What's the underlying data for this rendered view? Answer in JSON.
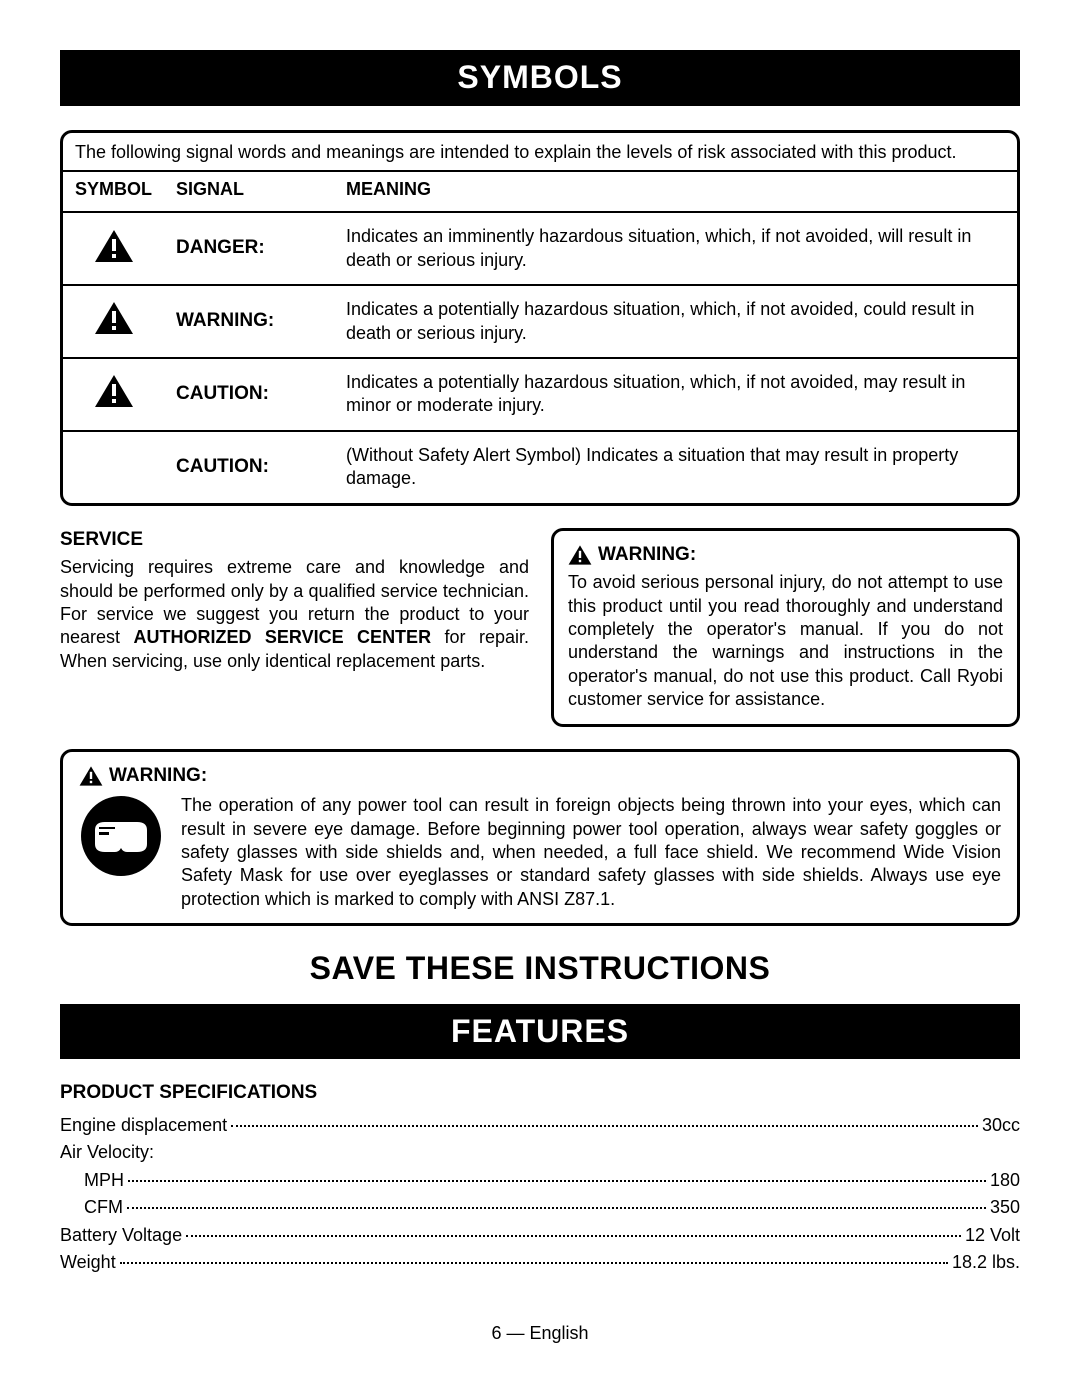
{
  "banners": {
    "symbols": "SYMBOLS",
    "features": "FEATURES"
  },
  "signal_intro": "The following signal words and meanings are intended to explain the levels of risk associated with this product.",
  "table": {
    "headers": {
      "symbol": "SYMBOL",
      "signal": "SIGNAL",
      "meaning": "MEANING"
    },
    "rows": [
      {
        "has_icon": true,
        "signal": "DANGER:",
        "meaning": "Indicates an imminently hazardous situation, which, if not avoided, will result in death or serious injury."
      },
      {
        "has_icon": true,
        "signal": "WARNING:",
        "meaning": "Indicates a potentially hazardous situation, which, if not avoided, could result in death or serious injury."
      },
      {
        "has_icon": true,
        "signal": "CAUTION:",
        "meaning": "Indicates a potentially hazardous situation, which, if not avoided, may result in minor or moderate injury."
      },
      {
        "has_icon": false,
        "signal": "CAUTION:",
        "meaning": "(Without Safety Alert Symbol) Indicates a situation that may result in property damage."
      }
    ]
  },
  "service": {
    "heading": "SERVICE",
    "text_before": "Servicing requires extreme care and knowledge and should be performed only by a qualified service technician. For service we suggest you return the product to your nearest ",
    "bold": "AUTHORIZED SERVICE CENTER",
    "text_after": " for repair. When servicing, use only identical replacement parts."
  },
  "warning_right": {
    "heading": "WARNING:",
    "text": "To avoid serious personal injury, do not attempt to use this product until you read thoroughly and understand completely the operator's manual. If you do not understand the warnings and instructions in the operator's manual, do not use this product. Call Ryobi customer service for assistance."
  },
  "warning_full": {
    "heading": "WARNING:",
    "text": "The operation of any power tool can result in foreign objects being thrown into your eyes, which can result in severe eye damage. Before beginning power tool operation, always wear safety goggles or safety glasses with side shields and, when needed, a full face shield. We recommend Wide Vision Safety Mask for use over eyeglasses or standard safety glasses with side shields. Always use eye protection which is marked to comply with ANSI Z87.1."
  },
  "save_instructions": "SAVE THESE INSTRUCTIONS",
  "specs": {
    "heading": "PRODUCT SPECIFICATIONS",
    "rows": [
      {
        "label": "Engine displacement",
        "value": "30cc",
        "indent": false
      },
      {
        "label": "Air Velocity:",
        "value": "",
        "header_only": true
      },
      {
        "label": "MPH",
        "value": "180",
        "indent": true
      },
      {
        "label": "CFM",
        "value": "350",
        "indent": true
      },
      {
        "label": "Battery Voltage",
        "value": "12 Volt",
        "indent": false
      },
      {
        "label": "Weight",
        "value": "18.2 lbs.",
        "indent": false
      }
    ]
  },
  "footer": "6 — English"
}
